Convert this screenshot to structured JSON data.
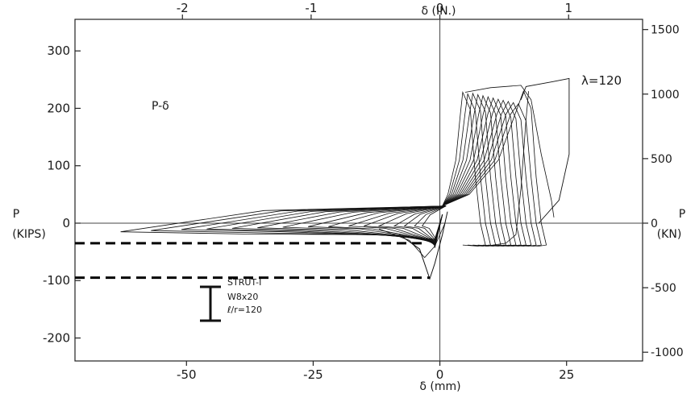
{
  "chart_data": {
    "type": "line",
    "title": "",
    "annotation_panel": "P-δ",
    "annotation_lambda": "λ=120",
    "legend": {
      "strut": "STRUT-I",
      "section": "W8x20",
      "slenderness": "ℓ/r=120"
    },
    "x_bottom": {
      "label": "δ (mm)",
      "ticks": [
        -50,
        -25,
        0,
        25
      ],
      "tick_labels": [
        "-50",
        "-25",
        "0",
        "25"
      ],
      "range": [
        -72,
        40
      ]
    },
    "x_top": {
      "label": "δ (IN.)",
      "ticks": [
        -2,
        -1,
        0,
        1
      ],
      "tick_labels": [
        "-2",
        "-1",
        "0",
        "1"
      ]
    },
    "y_left": {
      "label_line1": "P",
      "label_line2": "(KIPS)",
      "ticks": [
        300,
        200,
        100,
        0,
        -100,
        -200
      ],
      "tick_labels": [
        "300",
        "200",
        "100",
        "0",
        "-100",
        "-200"
      ],
      "range": [
        -240,
        355
      ]
    },
    "y_right": {
      "label_line1": "P",
      "label_line2": "(KN)",
      "ticks": [
        1500,
        1000,
        500,
        0,
        -500,
        -1000
      ],
      "tick_labels": [
        "1500",
        "1000",
        "500",
        "0",
        "-500",
        "-1000"
      ]
    },
    "reference_lines": [
      {
        "style": "dashed",
        "y": -35,
        "x": [
          -72,
          -2.5
        ]
      },
      {
        "style": "dashed",
        "y": -95,
        "x": [
          -72,
          -2
        ]
      }
    ],
    "hysteresis": {
      "compression_peaks_x": [
        -63,
        -57,
        -51,
        -46,
        -41,
        -36,
        -31,
        -26,
        -22,
        -18,
        -15,
        -12,
        -9,
        -7,
        -5,
        -3.5
      ],
      "compression_peaks_y": [
        -15,
        -13,
        -11,
        -10,
        -9,
        -8,
        -7,
        -6,
        -6,
        -5,
        -5,
        -5,
        -5,
        -5,
        -5,
        -5
      ],
      "tension_peaks_x": [
        4.5,
        5.5,
        6.5,
        7.5,
        8.5,
        9.5,
        10.5,
        11.5,
        12.5,
        13.5,
        14.5,
        15.5,
        16.5
      ],
      "tension_peaks_y": [
        228,
        225,
        226,
        224,
        222,
        220,
        218,
        216,
        214,
        212,
        210,
        208,
        230
      ],
      "final_cycle": {
        "peak_x": 25.5,
        "peak_y": 252,
        "unload_x": 19.5
      }
    }
  }
}
